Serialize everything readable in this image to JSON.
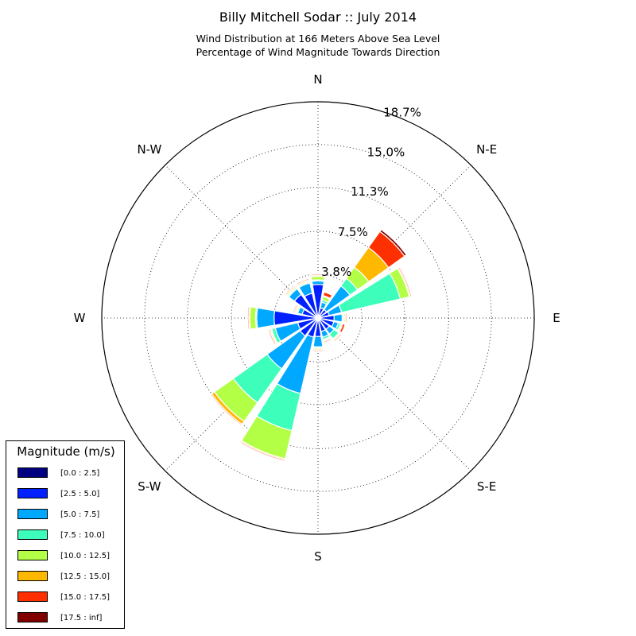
{
  "title": "Billy Mitchell Sodar :: July 2014",
  "subtitle": [
    "Wind Distribution at 166 Meters Above Sea Level",
    "Percentage of Wind Magnitude Towards Direction"
  ],
  "chart_data": {
    "type": "windrose",
    "directions": [
      "N",
      "NNE",
      "NE",
      "ENE",
      "E",
      "ESE",
      "SE",
      "SSE",
      "S",
      "SSW",
      "SW",
      "WSW",
      "W",
      "WNW",
      "NW",
      "NNW"
    ],
    "direction_labels": [
      "N",
      "N-E",
      "E",
      "S-E",
      "S",
      "S-W",
      "W",
      "N-W"
    ],
    "radial_ticks": [
      3.8,
      7.5,
      11.3,
      15.0,
      18.7
    ],
    "radial_tick_labels": [
      "3.8%",
      "7.5%",
      "11.3%",
      "15.0%",
      "18.7%"
    ],
    "rmax": 18.7,
    "legend_title": "Magnitude (m/s)",
    "legend_placement": "lower-left",
    "grid": true,
    "series": [
      {
        "name": "[0.0 : 2.5]",
        "color": "#000080",
        "values": [
          0.2,
          0.2,
          0.2,
          0.2,
          0.2,
          0.2,
          0.2,
          0.2,
          0.2,
          0.2,
          0.2,
          0.2,
          0.2,
          0.2,
          0.2,
          0.2
        ]
      },
      {
        "name": "[2.5 : 5.0]",
        "color": "#0020ff",
        "values": [
          2.7,
          0.7,
          0.7,
          0.8,
          1.2,
          1.2,
          1.0,
          1.0,
          1.4,
          1.5,
          1.7,
          1.6,
          3.6,
          1.2,
          2.3,
          2.0
        ]
      },
      {
        "name": "[5.0 : 7.5]",
        "color": "#00a8ff",
        "values": [
          0.3,
          0.5,
          2.5,
          1.1,
          0.7,
          0.4,
          0.5,
          0.5,
          0.9,
          5.0,
          3.5,
          2.0,
          1.5,
          0.4,
          0.6,
          0.9
        ]
      },
      {
        "name": "[7.5 : 10.0]",
        "color": "#3dffbb",
        "values": [
          0.1,
          0.2,
          0.8,
          5.2,
          0.1,
          0.2,
          0.5,
          0.2,
          0.1,
          3.3,
          3.6,
          0.3,
          0.1,
          0.1,
          0.1,
          0.1
        ]
      },
      {
        "name": "[10.0 : 12.5]",
        "color": "#b2ff46",
        "values": [
          0.3,
          0.3,
          1.2,
          0.8,
          0.1,
          0.1,
          0.1,
          0.1,
          0.1,
          2.5,
          2.0,
          0.1,
          0.5,
          0.1,
          0.1,
          0.1
        ]
      },
      {
        "name": "[12.5 : 15.0]",
        "color": "#ffb800",
        "values": [
          0.1,
          0.1,
          2.1,
          0.1,
          0.1,
          0.1,
          0.1,
          0.1,
          0.1,
          0.1,
          0.3,
          0.1,
          0.1,
          0.1,
          0.1,
          0.1
        ]
      },
      {
        "name": "[15.0 : 17.5]",
        "color": "#ff3000",
        "values": [
          0.1,
          0.3,
          1.7,
          0.1,
          0.1,
          0.2,
          0.1,
          0.1,
          0.1,
          0.1,
          0.1,
          0.1,
          0.1,
          0.1,
          0.1,
          0.1
        ]
      },
      {
        "name": "[17.5 : inf]",
        "color": "#800000",
        "values": [
          0.0,
          0.0,
          0.2,
          0.0,
          0.0,
          0.0,
          0.0,
          0.0,
          0.0,
          0.0,
          0.0,
          0.0,
          0.0,
          0.0,
          0.0,
          0.0
        ]
      }
    ]
  }
}
